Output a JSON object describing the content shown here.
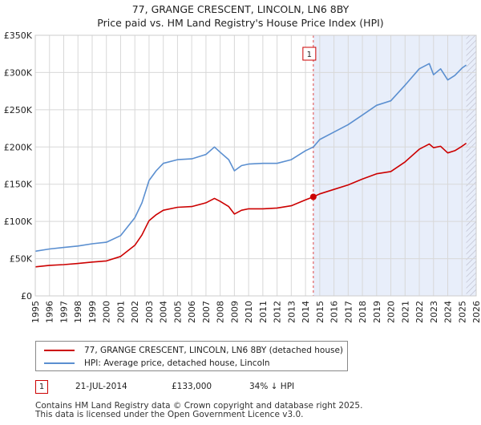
{
  "title_line1": "77, GRANGE CRESCENT, LINCOLN, LN6 8BY",
  "title_line2": "Price paid vs. HM Land Registry's House Price Index (HPI)",
  "legend": [
    {
      "label": "77, GRANGE CRESCENT, LINCOLN, LN6 8BY (detached house)",
      "color": "#cc0000"
    },
    {
      "label": "HPI: Average price, detached house, Lincoln",
      "color": "#5b8fd0"
    }
  ],
  "annotations": [
    {
      "id": "1",
      "date": "21-JUL-2014",
      "price": "£133,000",
      "hpi": "34% ↓ HPI"
    }
  ],
  "footer_line1": "Contains HM Land Registry data © Crown copyright and database right 2025.",
  "footer_line2": "This data is licensed under the Open Government Licence v3.0.",
  "chart_data": {
    "type": "line",
    "title": "77, GRANGE CRESCENT, LINCOLN, LN6 8BY — Price paid vs. HM Land Registry's House Price Index (HPI)",
    "xlabel": "",
    "ylabel": "",
    "xlim": [
      1995,
      2026
    ],
    "ylim": [
      0,
      350000
    ],
    "y_ticks": [
      0,
      50000,
      100000,
      150000,
      200000,
      250000,
      300000,
      350000
    ],
    "y_tick_labels": [
      "£0",
      "£50K",
      "£100K",
      "£150K",
      "£200K",
      "£250K",
      "£300K",
      "£350K"
    ],
    "x_ticks": [
      1995,
      1996,
      1997,
      1998,
      1999,
      2000,
      2001,
      2002,
      2003,
      2004,
      2005,
      2006,
      2007,
      2008,
      2009,
      2010,
      2011,
      2012,
      2013,
      2014,
      2015,
      2016,
      2017,
      2018,
      2019,
      2020,
      2021,
      2022,
      2023,
      2024,
      2025,
      2026
    ],
    "grid": true,
    "shaded_region": [
      2014.55,
      2026
    ],
    "hatched_region": [
      2025.3,
      2026
    ],
    "series": [
      {
        "name": "77, GRANGE CRESCENT, LINCOLN, LN6 8BY (detached house)",
        "color": "#cc0000",
        "x": [
          1995,
          1996,
          1997,
          1998,
          1999,
          2000,
          2001,
          2002,
          2002.5,
          2003,
          2003.5,
          2004,
          2005,
          2006,
          2007,
          2007.6,
          2008,
          2008.6,
          2009,
          2009.5,
          2010,
          2011,
          2012,
          2013,
          2014,
          2014.55,
          2015,
          2016,
          2017,
          2018,
          2019,
          2020,
          2021,
          2022,
          2022.7,
          2023,
          2023.5,
          2024,
          2024.5,
          2025,
          2025.3
        ],
        "values": [
          39000,
          41000,
          42000,
          43500,
          45500,
          47000,
          53000,
          68000,
          82000,
          101000,
          109000,
          115000,
          119000,
          120000,
          125000,
          131000,
          127000,
          120000,
          110000,
          115000,
          117000,
          117000,
          118000,
          121000,
          129000,
          133000,
          137000,
          143000,
          149000,
          157000,
          164000,
          167000,
          180000,
          197000,
          204000,
          199000,
          201000,
          192000,
          195000,
          201000,
          205000
        ]
      },
      {
        "name": "HPI: Average price, detached house, Lincoln",
        "color": "#5b8fd0",
        "x": [
          1995,
          1996,
          1997,
          1998,
          1999,
          2000,
          2001,
          2002,
          2002.5,
          2003,
          2003.5,
          2004,
          2005,
          2006,
          2007,
          2007.6,
          2008,
          2008.6,
          2009,
          2009.5,
          2010,
          2011,
          2012,
          2013,
          2014,
          2014.55,
          2015,
          2016,
          2017,
          2018,
          2019,
          2020,
          2021,
          2022,
          2022.7,
          2023,
          2023.5,
          2024,
          2024.5,
          2025,
          2025.3
        ],
        "values": [
          60000,
          63000,
          65000,
          67000,
          70000,
          72000,
          81000,
          105000,
          125000,
          155000,
          168000,
          178000,
          183000,
          184000,
          190000,
          200000,
          193000,
          183000,
          168000,
          175000,
          177000,
          178000,
          178000,
          183000,
          195000,
          200000,
          210000,
          220000,
          230000,
          243000,
          256000,
          262000,
          283000,
          305000,
          312000,
          297000,
          305000,
          290000,
          296000,
          306000,
          310000
        ]
      }
    ],
    "markers": [
      {
        "label": "1",
        "x": 2014.55,
        "value": 133000
      }
    ]
  }
}
